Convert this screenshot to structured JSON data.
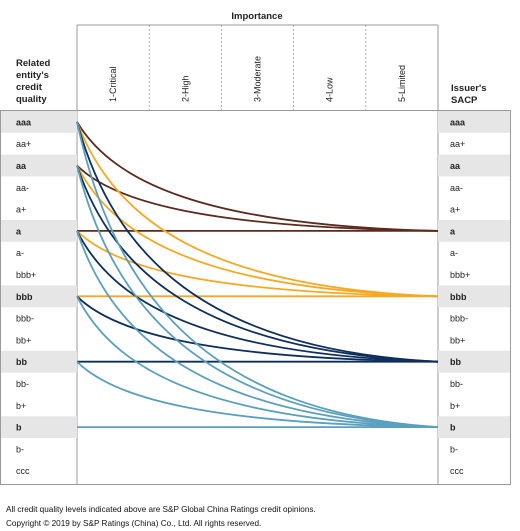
{
  "header": {
    "importance": "Importance"
  },
  "left_header": [
    "Related",
    "entity's",
    "credit",
    "quality"
  ],
  "right_header": [
    "Issuer's",
    "SACP"
  ],
  "columns": [
    "1-Critical",
    "2-High",
    "3-Moderate",
    "4-Low",
    "5-Limited"
  ],
  "rating_scale": [
    "aaa",
    "aa+",
    "aa",
    "aa-",
    "a+",
    "a",
    "a-",
    "bbb+",
    "bbb",
    "bbb-",
    "bb+",
    "bb",
    "bb-",
    "b+",
    "b",
    "b-",
    "ccc"
  ],
  "highlighted_rows": [
    "aaa",
    "aa",
    "a",
    "bbb",
    "bb",
    "b"
  ],
  "colors": {
    "dark_brown": "#5b2a1e",
    "orange": "#f7a823",
    "navy": "#0e2f5c",
    "light_blue": "#5b9fbf",
    "shade": "#e6e6e6",
    "border": "#999999"
  },
  "connections": [
    {
      "from": "aaa",
      "to": "a",
      "color": "dark_brown"
    },
    {
      "from": "aa",
      "to": "a",
      "color": "dark_brown"
    },
    {
      "from": "a",
      "to": "a",
      "color": "dark_brown"
    },
    {
      "from": "aaa",
      "to": "bbb",
      "color": "orange"
    },
    {
      "from": "aa",
      "to": "bbb",
      "color": "orange"
    },
    {
      "from": "a",
      "to": "bbb",
      "color": "orange"
    },
    {
      "from": "bbb",
      "to": "bbb",
      "color": "orange"
    },
    {
      "from": "aaa",
      "to": "bb",
      "color": "navy"
    },
    {
      "from": "aa",
      "to": "bb",
      "color": "navy"
    },
    {
      "from": "a",
      "to": "bb",
      "color": "navy"
    },
    {
      "from": "bbb",
      "to": "bb",
      "color": "navy"
    },
    {
      "from": "bb",
      "to": "bb",
      "color": "navy"
    },
    {
      "from": "aaa",
      "to": "b",
      "color": "light_blue"
    },
    {
      "from": "aa",
      "to": "b",
      "color": "light_blue"
    },
    {
      "from": "a",
      "to": "b",
      "color": "light_blue"
    },
    {
      "from": "bbb",
      "to": "b",
      "color": "light_blue"
    },
    {
      "from": "bb",
      "to": "b",
      "color": "light_blue"
    },
    {
      "from": "b",
      "to": "b",
      "color": "light_blue"
    }
  ],
  "footnotes": [
    "All credit quality levels indicated above are S&P Global China Ratings credit opinions.",
    "Copyright © 2019 by S&P Ratings (China) Co., Ltd. All rights reserved."
  ]
}
